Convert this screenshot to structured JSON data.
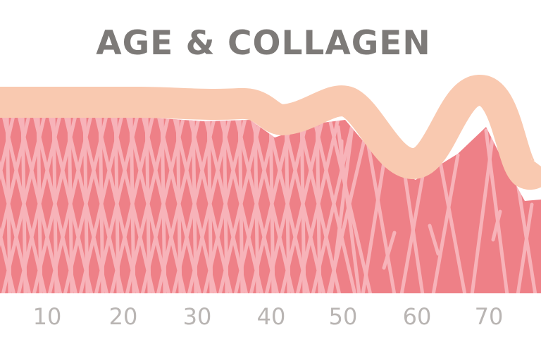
{
  "title": "AGE & COLLAGEN",
  "age_ticks": [
    "10",
    "20",
    "30",
    "40",
    "50",
    "60",
    "70"
  ],
  "colors": {
    "title": "#7d7a78",
    "tick_label": "#b9b5b3",
    "dermis": "#ee8087",
    "epidermis": "#f9c9b0",
    "collagen_fiber": "#f7b3b9"
  }
}
